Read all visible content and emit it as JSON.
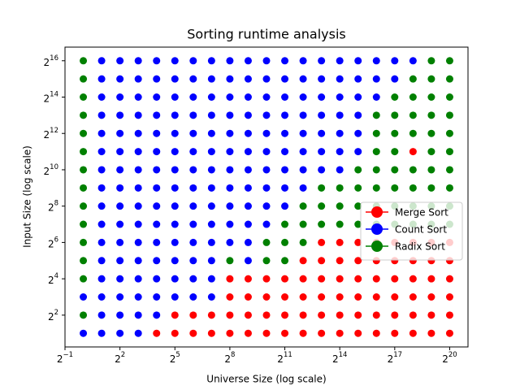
{
  "chart_data": {
    "type": "scatter",
    "title": "Sorting runtime analysis",
    "x_label": "Universe Size (log scale)",
    "y_label": "Input Size (log scale)",
    "x_log_base": 2,
    "y_log_base": 2,
    "xlim": [
      0.5,
      2097152
    ],
    "ylim": [
      1.189207115,
      110217.97
    ],
    "xticks": [
      {
        "value": 0.5,
        "label": "2^−1"
      },
      {
        "value": 4,
        "label": "2^2"
      },
      {
        "value": 32,
        "label": "2^5"
      },
      {
        "value": 256,
        "label": "2^8"
      },
      {
        "value": 2048,
        "label": "2^11"
      },
      {
        "value": 16384,
        "label": "2^14"
      },
      {
        "value": 131072,
        "label": "2^17"
      },
      {
        "value": 1048576,
        "label": "2^20"
      }
    ],
    "yticks": [
      {
        "value": 4,
        "label": "2^2"
      },
      {
        "value": 16,
        "label": "2^4"
      },
      {
        "value": 64,
        "label": "2^6"
      },
      {
        "value": 256,
        "label": "2^8"
      },
      {
        "value": 1024,
        "label": "2^10"
      },
      {
        "value": 4096,
        "label": "2^12"
      },
      {
        "value": 16384,
        "label": "2^14"
      },
      {
        "value": 65536,
        "label": "2^16"
      }
    ],
    "legend": "right",
    "series": [
      {
        "name": "Merge Sort",
        "color": "#ff0000",
        "x": [
          16,
          32,
          64,
          128,
          256,
          512,
          1024,
          2048,
          4096,
          8192,
          16384,
          32768,
          65536,
          131072,
          262144,
          524288,
          1048576,
          32,
          64,
          128,
          256,
          512,
          1024,
          2048,
          4096,
          8192,
          16384,
          32768,
          65536,
          131072,
          262144,
          524288,
          1048576,
          256,
          512,
          1024,
          2048,
          4096,
          8192,
          16384,
          32768,
          65536,
          131072,
          262144,
          524288,
          1048576,
          256,
          512,
          1024,
          2048,
          4096,
          8192,
          16384,
          32768,
          65536,
          131072,
          262144,
          524288,
          1048576,
          4096,
          8192,
          16384,
          32768,
          65536,
          131072,
          262144,
          524288,
          1048576,
          8192,
          16384,
          32768,
          65536,
          131072,
          262144,
          524288,
          1048576,
          262144
        ],
        "values": [
          2,
          2,
          2,
          2,
          2,
          2,
          2,
          2,
          2,
          2,
          2,
          2,
          2,
          2,
          2,
          2,
          2,
          4,
          4,
          4,
          4,
          4,
          4,
          4,
          4,
          4,
          4,
          4,
          4,
          4,
          4,
          4,
          4,
          8,
          8,
          8,
          8,
          8,
          8,
          8,
          8,
          8,
          8,
          8,
          8,
          8,
          16,
          16,
          16,
          16,
          16,
          16,
          16,
          16,
          16,
          16,
          16,
          16,
          16,
          32,
          32,
          32,
          32,
          32,
          32,
          32,
          32,
          32,
          64,
          64,
          64,
          64,
          64,
          64,
          64,
          64,
          2048
        ]
      },
      {
        "name": "Count Sort",
        "color": "#0000ff",
        "x": [
          1,
          2,
          4,
          8,
          2,
          4,
          8,
          16,
          1,
          2,
          4,
          8,
          16,
          32,
          64,
          128,
          2,
          4,
          8,
          16,
          32,
          64,
          128,
          2,
          4,
          8,
          16,
          32,
          64,
          128,
          512,
          2,
          4,
          8,
          16,
          32,
          64,
          128,
          256,
          512,
          2,
          4,
          8,
          16,
          32,
          64,
          128,
          256,
          512,
          1024,
          2,
          4,
          8,
          16,
          32,
          64,
          128,
          256,
          512,
          1024,
          2048,
          2,
          4,
          8,
          16,
          32,
          64,
          128,
          256,
          512,
          1024,
          2048,
          4096,
          2,
          4,
          8,
          16,
          32,
          64,
          128,
          256,
          512,
          1024,
          2048,
          4096,
          8192,
          16384,
          2,
          4,
          8,
          16,
          32,
          64,
          128,
          256,
          512,
          1024,
          2048,
          4096,
          8192,
          16384,
          32768,
          2,
          4,
          8,
          16,
          32,
          64,
          128,
          256,
          512,
          1024,
          2048,
          4096,
          8192,
          16384,
          32768,
          2,
          4,
          8,
          16,
          32,
          64,
          128,
          256,
          512,
          1024,
          2048,
          4096,
          8192,
          16384,
          32768,
          2,
          4,
          8,
          16,
          32,
          64,
          128,
          256,
          512,
          1024,
          2048,
          4096,
          8192,
          16384,
          32768,
          65536,
          2,
          4,
          8,
          16,
          32,
          64,
          128,
          256,
          512,
          1024,
          2048,
          4096,
          8192,
          16384,
          32768,
          65536,
          131072,
          2,
          4,
          8,
          16,
          32,
          64,
          128,
          256,
          512,
          1024,
          2048,
          4096,
          8192,
          16384,
          32768,
          65536,
          131072,
          262144
        ],
        "values": [
          2,
          2,
          2,
          2,
          4,
          4,
          4,
          4,
          8,
          8,
          8,
          8,
          8,
          8,
          8,
          8,
          16,
          16,
          16,
          16,
          16,
          16,
          16,
          32,
          32,
          32,
          32,
          32,
          32,
          32,
          32,
          64,
          64,
          64,
          64,
          64,
          64,
          64,
          64,
          64,
          128,
          128,
          128,
          128,
          128,
          128,
          128,
          128,
          128,
          128,
          256,
          256,
          256,
          256,
          256,
          256,
          256,
          256,
          256,
          256,
          256,
          512,
          512,
          512,
          512,
          512,
          512,
          512,
          512,
          512,
          512,
          512,
          512,
          1024,
          1024,
          1024,
          1024,
          1024,
          1024,
          1024,
          1024,
          1024,
          1024,
          1024,
          1024,
          1024,
          1024,
          2048,
          2048,
          2048,
          2048,
          2048,
          2048,
          2048,
          2048,
          2048,
          2048,
          2048,
          2048,
          2048,
          2048,
          2048,
          4096,
          4096,
          4096,
          4096,
          4096,
          4096,
          4096,
          4096,
          4096,
          4096,
          4096,
          4096,
          4096,
          4096,
          4096,
          8192,
          8192,
          8192,
          8192,
          8192,
          8192,
          8192,
          8192,
          8192,
          8192,
          8192,
          8192,
          8192,
          8192,
          8192,
          16384,
          16384,
          16384,
          16384,
          16384,
          16384,
          16384,
          16384,
          16384,
          16384,
          16384,
          16384,
          16384,
          16384,
          16384,
          16384,
          32768,
          32768,
          32768,
          32768,
          32768,
          32768,
          32768,
          32768,
          32768,
          32768,
          32768,
          32768,
          32768,
          32768,
          32768,
          32768,
          32768,
          65536,
          65536,
          65536,
          65536,
          65536,
          65536,
          65536,
          65536,
          65536,
          65536,
          65536,
          65536,
          65536,
          65536,
          65536,
          65536,
          65536,
          65536
        ]
      },
      {
        "name": "Radix Sort",
        "color": "#008000",
        "x": [
          1,
          1,
          1,
          256,
          1024,
          2048,
          1,
          1024,
          2048,
          4096,
          1,
          2048,
          4096,
          8192,
          16384,
          32768,
          65536,
          131072,
          262144,
          524288,
          1048576,
          1,
          4096,
          8192,
          16384,
          32768,
          65536,
          131072,
          262144,
          524288,
          1048576,
          1,
          8192,
          16384,
          32768,
          65536,
          131072,
          262144,
          524288,
          1048576,
          1,
          32768,
          65536,
          131072,
          262144,
          524288,
          1048576,
          1,
          65536,
          131072,
          524288,
          1048576,
          1,
          65536,
          131072,
          262144,
          524288,
          1048576,
          1,
          65536,
          131072,
          262144,
          524288,
          1048576,
          1,
          131072,
          262144,
          524288,
          1048576,
          1,
          262144,
          524288,
          1048576,
          1,
          524288,
          1048576
        ],
        "values": [
          4,
          16,
          32,
          32,
          32,
          32,
          64,
          64,
          64,
          64,
          128,
          128,
          128,
          128,
          128,
          128,
          128,
          128,
          128,
          128,
          128,
          256,
          256,
          256,
          256,
          256,
          256,
          256,
          256,
          256,
          256,
          512,
          512,
          512,
          512,
          512,
          512,
          512,
          512,
          512,
          1024,
          1024,
          1024,
          1024,
          1024,
          1024,
          1024,
          2048,
          2048,
          2048,
          2048,
          2048,
          4096,
          4096,
          4096,
          4096,
          4096,
          4096,
          8192,
          8192,
          8192,
          8192,
          8192,
          8192,
          16384,
          16384,
          16384,
          16384,
          16384,
          32768,
          32768,
          32768,
          32768,
          65536,
          65536,
          65536
        ]
      }
    ]
  }
}
